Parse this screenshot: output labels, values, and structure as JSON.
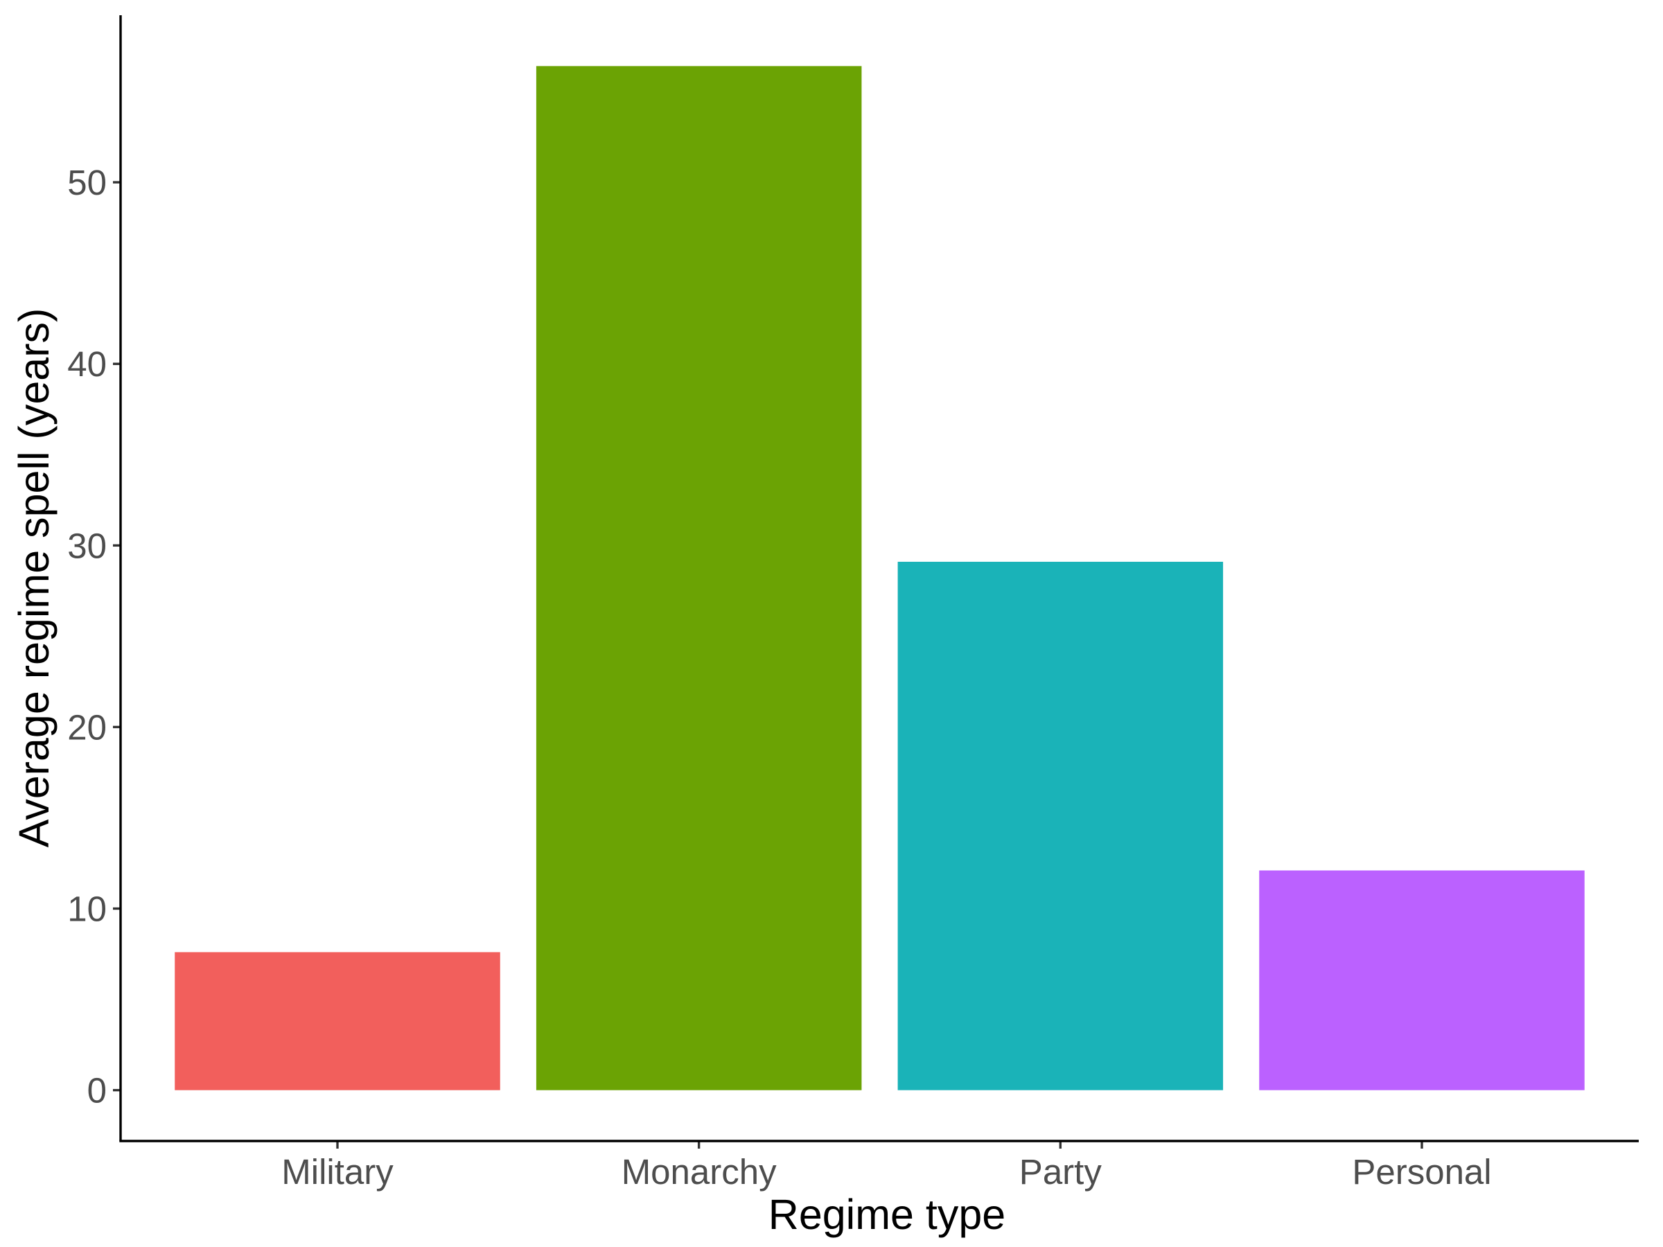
{
  "chart_data": {
    "type": "bar",
    "categories": [
      "Military",
      "Monarchy",
      "Party",
      "Personal"
    ],
    "values": [
      7.6,
      56.4,
      29.1,
      12.1
    ],
    "colors": [
      "#F25F5C",
      "#6BA304",
      "#1AB3B8",
      "#BB61FF"
    ],
    "xlabel": "Regime type",
    "ylabel": "Average regime spell (years)",
    "ylim": [
      -2.8,
      59.2
    ],
    "yticks": [
      0,
      10,
      20,
      30,
      40,
      50
    ],
    "grid": false,
    "legend": "none"
  }
}
